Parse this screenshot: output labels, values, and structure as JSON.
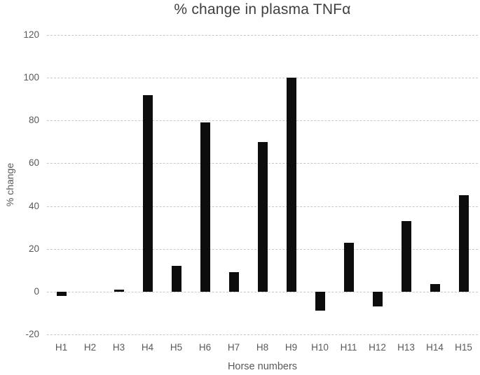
{
  "chart_data": {
    "type": "bar",
    "title": "% change in plasma TNFα",
    "xlabel": "Horse numbers",
    "ylabel": "% change",
    "categories": [
      "H1",
      "H2",
      "H3",
      "H4",
      "H5",
      "H6",
      "H7",
      "H8",
      "H9",
      "H10",
      "H11",
      "H12",
      "H13",
      "H14",
      "H15"
    ],
    "values": [
      -2,
      0,
      1,
      92,
      12,
      79,
      9,
      70,
      100,
      -9,
      23,
      -7,
      33,
      3.5,
      45
    ],
    "ylim": [
      -20,
      120
    ],
    "ytick_step": 20,
    "yticks": [
      120,
      100,
      80,
      60,
      40,
      20,
      0,
      -20
    ],
    "grid": "horizontal-dashed",
    "legend": "none",
    "colors": {
      "bar": "#0d0d0d",
      "gridline": "#c8c8c8",
      "tick_text": "#595959",
      "title_text": "#3f3f3f",
      "background": "#ffffff"
    }
  }
}
